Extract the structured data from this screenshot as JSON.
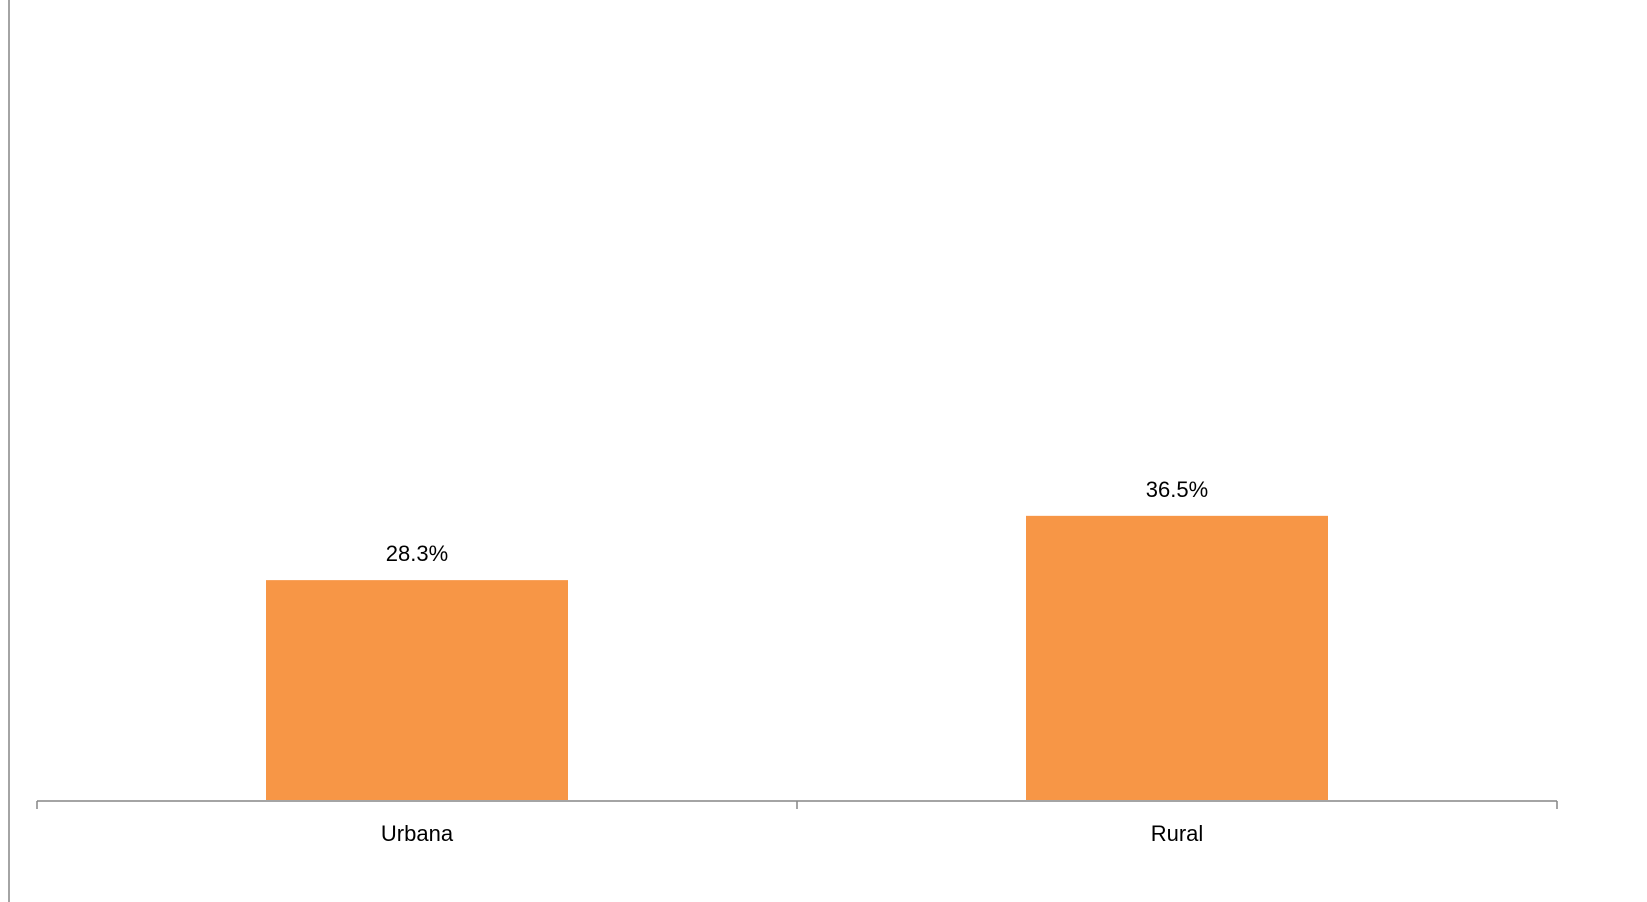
{
  "chart_data": {
    "type": "bar",
    "categories": [
      "Urbana",
      "Rural"
    ],
    "values": [
      28.3,
      36.5
    ],
    "data_labels": [
      "28.3%",
      "36.5%"
    ],
    "unit": "%",
    "title": "",
    "xlabel": "",
    "ylabel": "",
    "ylim": [
      0,
      100
    ],
    "grid": false,
    "legend": "none",
    "colors": {
      "bar": "#F79646",
      "bar_edge": "#FFFFFF",
      "axis": "#868686"
    }
  }
}
